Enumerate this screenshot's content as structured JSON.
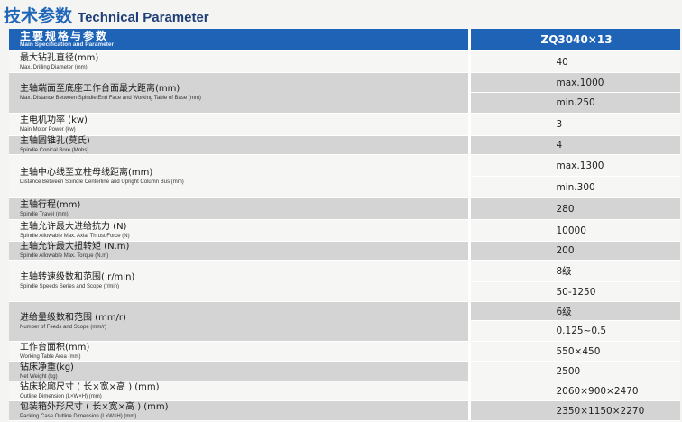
{
  "title": {
    "cn": "技术参数",
    "en": "Technical Parameter"
  },
  "header": {
    "param_cn": "主要规格与参数",
    "param_en": "Main Specification and Parameter",
    "model": "ZQ3040×13"
  },
  "rows": [
    {
      "cn": "最大钻孔直径(mm)",
      "en": "Max. Drilling Diameter (mm)",
      "values": [
        "40"
      ]
    },
    {
      "cn": "主轴端面至底座工作台面最大距离(mm)",
      "en": "Max. Distance Between Spindle End Face and Working Table of Base (mm)",
      "values": [
        "max.1000",
        "min.250"
      ]
    },
    {
      "cn": "主电机功率 (kw)",
      "en": "Main Motor Power (kw)",
      "values": [
        "3"
      ]
    },
    {
      "cn": "主轴圆锥孔(莫氏)",
      "en": "Spindle Conical Bore (Mohs)",
      "values": [
        "4"
      ]
    },
    {
      "cn": "主轴中心线至立柱母线距离(mm)",
      "en": "Distance Between Spindle Centerline and Upright Column Bus (mm)",
      "values": [
        "max.1300",
        "min.300"
      ]
    },
    {
      "cn": "主轴行程(mm)",
      "en": "Spindle Travel (mm)",
      "values": [
        "280"
      ]
    },
    {
      "cn": "主轴允许最大进给抗力 (N)",
      "en": "Spindle Allowable Max. Axial Thrust Force (N)",
      "values": [
        "10000"
      ]
    },
    {
      "cn": "主轴允许最大扭转矩 (N.m)",
      "en": "Spindle Allowable Max. Torque (N.m)",
      "values": [
        "200"
      ]
    },
    {
      "cn": "主轴转速级数和范围( r/min)",
      "en": "Spindle Speeds Series and Scope (r/min)",
      "values": [
        "8级",
        "50-1250"
      ]
    },
    {
      "cn": "进给量级数和范围 (mm/r)",
      "en": "Number of Feeds and Scope (mm/r)",
      "values": [
        "6级",
        "0.125~0.5"
      ]
    },
    {
      "cn": "工作台面积(mm)",
      "en": "Working Table Area (mm)",
      "values": [
        "550×450"
      ]
    },
    {
      "cn": "钻床净重(kg)",
      "en": "Net Weight (kg)",
      "values": [
        "2500"
      ]
    },
    {
      "cn": "钻床轮廓尺寸 ( 长×宽×高 ) (mm)",
      "en": "Outline Dimension (L×W×H) (mm)",
      "values": [
        "2060×900×2470"
      ]
    },
    {
      "cn": "包装箱外形尺寸 ( 长×宽×高 ) (mm)",
      "en": "Packing Case Outline Dimension (L×W×H) (mm)",
      "values": [
        "2350×1150×2270"
      ]
    }
  ]
}
